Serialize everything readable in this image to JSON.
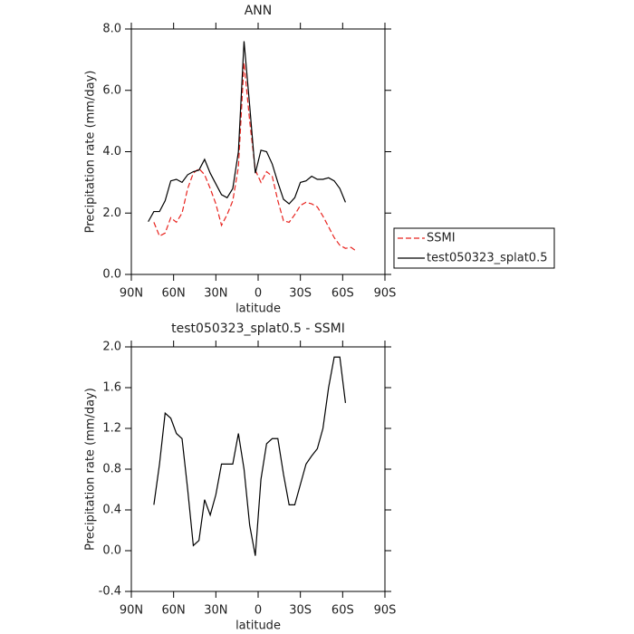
{
  "chart_data": [
    {
      "type": "line",
      "title": "ANN",
      "xlabel": "latitude",
      "ylabel": "Precipitation rate (mm/day)",
      "x": [
        78,
        74,
        70,
        66,
        62,
        58,
        54,
        50,
        46,
        42,
        38,
        34,
        30,
        26,
        22,
        18,
        14,
        10,
        6,
        2,
        -2,
        -6,
        -10,
        -14,
        -18,
        -22,
        -26,
        -30,
        -34,
        -38,
        -42,
        -46,
        -50,
        -54,
        -58,
        -62,
        -66,
        -70
      ],
      "xlim": [
        90,
        -90
      ],
      "xticks": [
        {
          "value": 90,
          "label": "90N"
        },
        {
          "value": 60,
          "label": "60N"
        },
        {
          "value": 30,
          "label": "30N"
        },
        0,
        {
          "value": -30,
          "label": "30S"
        },
        {
          "value": -60,
          "label": "60S"
        },
        {
          "value": -90,
          "label": "90S"
        }
      ],
      "ylim": [
        0,
        8
      ],
      "yticks": [
        {
          "value": 0,
          "label": "0.0"
        },
        {
          "value": 2,
          "label": "2.0"
        },
        {
          "value": 4,
          "label": "4.0"
        },
        {
          "value": 6,
          "label": "6.0"
        },
        {
          "value": 8,
          "label": "8.0"
        }
      ],
      "legend": "right",
      "series": [
        {
          "name": "SSMI",
          "color": "#e8231e",
          "dash": true,
          "values": [
            null,
            1.7,
            1.25,
            1.35,
            1.85,
            1.7,
            2.0,
            2.8,
            3.3,
            3.45,
            3.25,
            2.8,
            2.3,
            1.6,
            1.95,
            2.4,
            3.5,
            6.9,
            5.0,
            3.4,
            3.0,
            3.35,
            3.2,
            2.4,
            1.75,
            1.7,
            1.95,
            2.25,
            2.35,
            2.3,
            2.2,
            1.9,
            1.55,
            1.2,
            0.95,
            0.85,
            0.88,
            0.75
          ]
        },
        {
          "name": "test050323_splat0.5",
          "color": "#000000",
          "dash": false,
          "values": [
            1.72,
            2.05,
            2.05,
            2.4,
            3.05,
            3.1,
            3.0,
            3.25,
            3.35,
            3.4,
            3.75,
            3.3,
            2.95,
            2.6,
            2.5,
            2.8,
            4.0,
            7.6,
            5.5,
            3.3,
            4.05,
            4.0,
            3.6,
            3.0,
            2.45,
            2.3,
            2.5,
            3.0,
            3.05,
            3.2,
            3.1,
            3.1,
            3.15,
            3.05,
            2.8,
            2.35,
            null,
            null
          ]
        }
      ]
    },
    {
      "type": "line",
      "title": "test050323_splat0.5 - SSMI",
      "xlabel": "latitude",
      "ylabel": "Precipitation rate (mm/day)",
      "x": [
        78,
        74,
        70,
        66,
        62,
        58,
        54,
        50,
        46,
        42,
        38,
        34,
        30,
        26,
        22,
        18,
        14,
        10,
        6,
        2,
        -2,
        -6,
        -10,
        -14,
        -18,
        -22,
        -26,
        -30,
        -34,
        -38,
        -42,
        -46,
        -50,
        -54,
        -58,
        -62,
        -66,
        -70
      ],
      "xlim": [
        90,
        -90
      ],
      "xticks": [
        {
          "value": 90,
          "label": "90N"
        },
        {
          "value": 60,
          "label": "60N"
        },
        {
          "value": 30,
          "label": "30N"
        },
        0,
        {
          "value": -30,
          "label": "30S"
        },
        {
          "value": -60,
          "label": "60S"
        },
        {
          "value": -90,
          "label": "90S"
        }
      ],
      "ylim": [
        -0.4,
        2.0
      ],
      "yticks": [
        -0.4,
        {
          "value": 0,
          "label": "0.0"
        },
        0.4,
        0.8,
        1.2,
        1.6,
        {
          "value": 2,
          "label": "2.0"
        }
      ],
      "series": [
        {
          "color": "#000000",
          "dash": false,
          "values": [
            null,
            0.45,
            0.85,
            1.35,
            1.3,
            1.15,
            1.1,
            0.6,
            0.05,
            0.1,
            0.5,
            0.35,
            0.55,
            0.85,
            0.85,
            0.85,
            1.15,
            0.8,
            0.25,
            -0.05,
            0.7,
            1.05,
            1.1,
            1.1,
            0.75,
            0.45,
            0.45,
            0.65,
            0.85,
            0.93,
            1.0,
            1.2,
            1.6,
            1.9,
            1.9,
            1.45,
            null,
            null
          ]
        }
      ]
    }
  ]
}
